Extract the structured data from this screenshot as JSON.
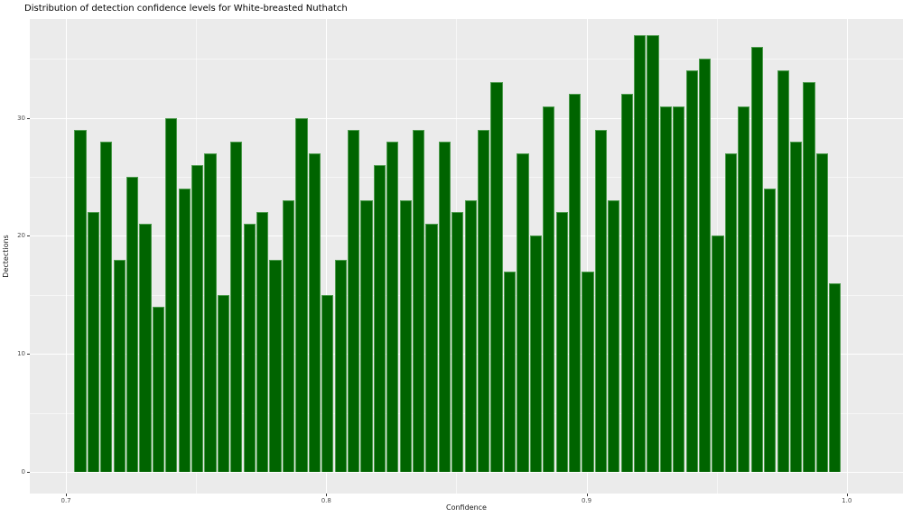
{
  "page": {
    "title": "Distribution of detection confidence levels for White-breasted Nuthatch"
  },
  "chart_data": {
    "type": "bar",
    "subtype": "histogram",
    "title": "Distribution of detection confidence levels for White-breasted Nuthatch",
    "xlabel": "Confidence",
    "ylabel": "Dectections",
    "bin_start": 0.703,
    "bin_width": 0.005,
    "values": [
      29,
      22,
      28,
      18,
      25,
      21,
      14,
      30,
      24,
      26,
      27,
      15,
      28,
      21,
      22,
      18,
      23,
      30,
      27,
      15,
      18,
      29,
      23,
      26,
      28,
      23,
      29,
      21,
      28,
      22,
      23,
      29,
      33,
      17,
      27,
      20,
      31,
      22,
      32,
      17,
      29,
      23,
      32,
      37,
      37,
      31,
      31,
      34,
      35,
      20,
      27,
      31,
      36,
      24,
      34,
      28,
      33,
      27,
      16
    ],
    "x_axis": {
      "ticks": [
        0.7,
        0.8,
        0.9,
        1.0
      ],
      "tick_labels": [
        "0.7",
        "0.8",
        "0.9",
        "1.0"
      ],
      "minor_ticks": [
        0.75,
        0.85,
        0.95
      ],
      "range": [
        0.6861,
        1.0216
      ]
    },
    "y_axis": {
      "ticks": [
        0,
        10,
        20,
        30
      ],
      "tick_labels": [
        "0",
        "10",
        "20",
        "30"
      ],
      "minor_ticks": [
        5,
        15,
        25,
        35
      ],
      "range": [
        -1.835,
        38.38
      ]
    },
    "grid": true,
    "legend": null,
    "colors": {
      "bar_fill": "#006400",
      "bar_edge": "#4d9b4d",
      "panel_background": "#EBEBEB",
      "gridline": "#FFFFFF",
      "tick_label": "#4D4D4D",
      "axis_title": "#1A1A1A",
      "title": "#000000"
    }
  }
}
